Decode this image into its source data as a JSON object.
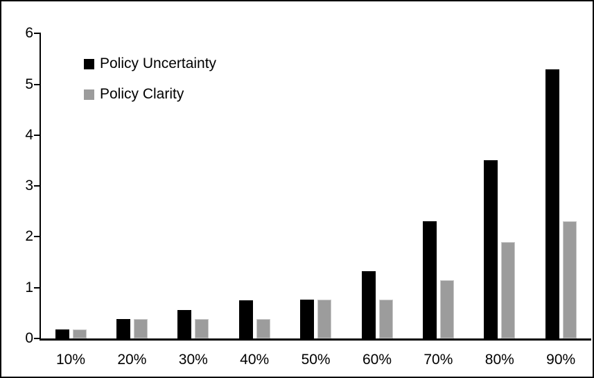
{
  "chart_data": {
    "type": "bar",
    "title": "",
    "categories": [
      "10%",
      "20%",
      "30%",
      "40%",
      "50%",
      "60%",
      "70%",
      "80%",
      "90%"
    ],
    "series": [
      {
        "name": "Policy Uncertainty",
        "color": "#000000",
        "values": [
          0.18,
          0.38,
          0.56,
          0.75,
          0.77,
          1.33,
          2.3,
          3.5,
          5.3
        ]
      },
      {
        "name": "Policy Clarity",
        "color": "#9C9C9C",
        "values": [
          0.18,
          0.38,
          0.38,
          0.38,
          0.77,
          0.77,
          1.15,
          1.9,
          2.3
        ]
      }
    ],
    "xlabel": "",
    "ylabel": "",
    "ylim": [
      0,
      6
    ],
    "yticks": [
      0,
      1,
      2,
      3,
      4,
      5,
      6
    ],
    "grid": false,
    "legend_position": "upper-left-inside",
    "axis_color": "#000000",
    "background": "#FFFFFF",
    "frame_border_color": "#000000",
    "gray_bar_border_color": "#c9c9c9"
  }
}
